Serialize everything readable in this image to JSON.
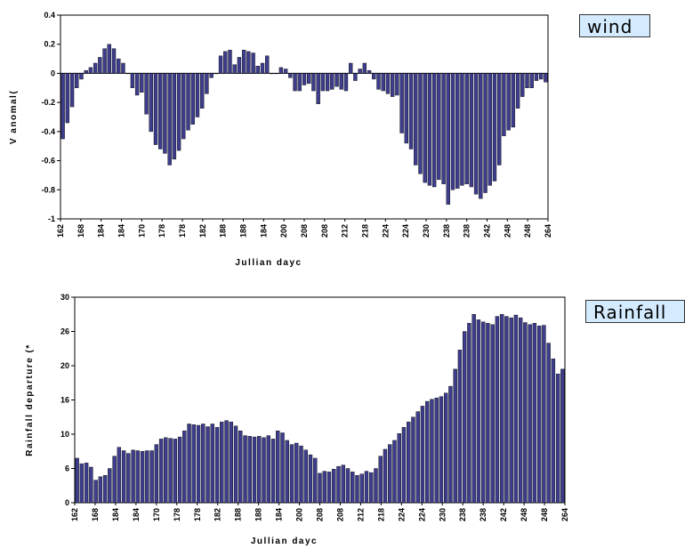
{
  "labels": {
    "wind": "wind",
    "rainfall": "Rainfall"
  },
  "chart_data": [
    {
      "type": "bar",
      "ylabel": "V anomal(",
      "xlabel": "Jullian dayc",
      "ylim": [
        -1,
        0.4
      ],
      "yticks": [
        "0.4",
        "0.2",
        "0",
        "-0.2",
        "-0.4",
        "-0.6",
        "-0.8",
        "-1"
      ],
      "x_tick_labels": [
        "162",
        "168",
        "184",
        "184",
        "170",
        "178",
        "178",
        "182",
        "188",
        "188",
        "184",
        "200",
        "208",
        "208",
        "212",
        "218",
        "224",
        "224",
        "230",
        "238",
        "238",
        "242",
        "248",
        "248",
        "264"
      ],
      "bar_color": "#3d3d8c",
      "values": [
        -0.45,
        -0.34,
        -0.23,
        -0.1,
        -0.04,
        0.02,
        0.04,
        0.07,
        0.11,
        0.17,
        0.2,
        0.17,
        0.1,
        0.07,
        0.0,
        -0.1,
        -0.15,
        -0.13,
        -0.28,
        -0.4,
        -0.49,
        -0.52,
        -0.55,
        -0.63,
        -0.59,
        -0.53,
        -0.45,
        -0.39,
        -0.35,
        -0.3,
        -0.24,
        -0.14,
        -0.03,
        0.0,
        0.12,
        0.15,
        0.16,
        0.06,
        0.11,
        0.16,
        0.15,
        0.14,
        0.05,
        0.07,
        0.12,
        0.0,
        0.0,
        0.04,
        0.03,
        -0.03,
        -0.12,
        -0.12,
        -0.08,
        -0.07,
        -0.12,
        -0.21,
        -0.12,
        -0.12,
        -0.11,
        -0.09,
        -0.11,
        -0.12,
        0.07,
        -0.05,
        0.03,
        0.07,
        0.02,
        -0.04,
        -0.11,
        -0.12,
        -0.14,
        -0.16,
        -0.15,
        -0.41,
        -0.48,
        -0.52,
        -0.63,
        -0.69,
        -0.75,
        -0.77,
        -0.78,
        -0.73,
        -0.76,
        -0.9,
        -0.8,
        -0.79,
        -0.77,
        -0.76,
        -0.78,
        -0.83,
        -0.86,
        -0.82,
        -0.77,
        -0.74,
        -0.63,
        -0.43,
        -0.39,
        -0.37,
        -0.24,
        -0.16,
        -0.1,
        -0.1,
        -0.05,
        -0.04,
        -0.06
      ]
    },
    {
      "type": "bar",
      "ylabel": "Rainfall departure (*",
      "xlabel": "Jullian dayc",
      "ylim": [
        0,
        30
      ],
      "yticks": [
        "30",
        "26",
        "20",
        "16",
        "10",
        "6",
        "0"
      ],
      "x_tick_labels": [
        "162",
        "168",
        "184",
        "184",
        "170",
        "178",
        "178",
        "182",
        "188",
        "188",
        "184",
        "200",
        "208",
        "208",
        "212",
        "218",
        "224",
        "224",
        "230",
        "238",
        "238",
        "242",
        "248",
        "248",
        "264"
      ],
      "bar_color": "#3d3d8c",
      "values": [
        6.5,
        5.7,
        5.8,
        5.2,
        3.3,
        3.8,
        4.0,
        5.0,
        6.8,
        8.1,
        7.6,
        7.2,
        7.7,
        7.6,
        7.5,
        7.6,
        7.6,
        8.5,
        9.3,
        9.5,
        9.4,
        9.3,
        9.6,
        10.5,
        11.5,
        11.4,
        11.3,
        11.5,
        11.1,
        11.5,
        11.0,
        11.8,
        12.0,
        11.8,
        11.2,
        10.5,
        9.8,
        9.7,
        9.6,
        9.7,
        9.5,
        9.8,
        9.3,
        10.5,
        10.2,
        9.1,
        8.5,
        8.7,
        8.3,
        7.7,
        7.0,
        6.5,
        4.3,
        4.6,
        4.5,
        4.9,
        5.3,
        5.5,
        5.0,
        4.5,
        4.0,
        4.2,
        4.6,
        4.4,
        5.0,
        6.8,
        7.8,
        8.5,
        9.1,
        10.1,
        11.0,
        11.8,
        12.5,
        13.3,
        14.1,
        14.8,
        15.1,
        15.3,
        15.5,
        16.0,
        17.0,
        19.5,
        22.3,
        25.0,
        26.2,
        27.5,
        26.7,
        26.4,
        26.2,
        26.0,
        27.2,
        27.5,
        27.2,
        27.0,
        27.4,
        27.0,
        26.3,
        26.0,
        26.2,
        25.8,
        25.9,
        23.3,
        21.0,
        18.8,
        19.5
      ]
    }
  ]
}
